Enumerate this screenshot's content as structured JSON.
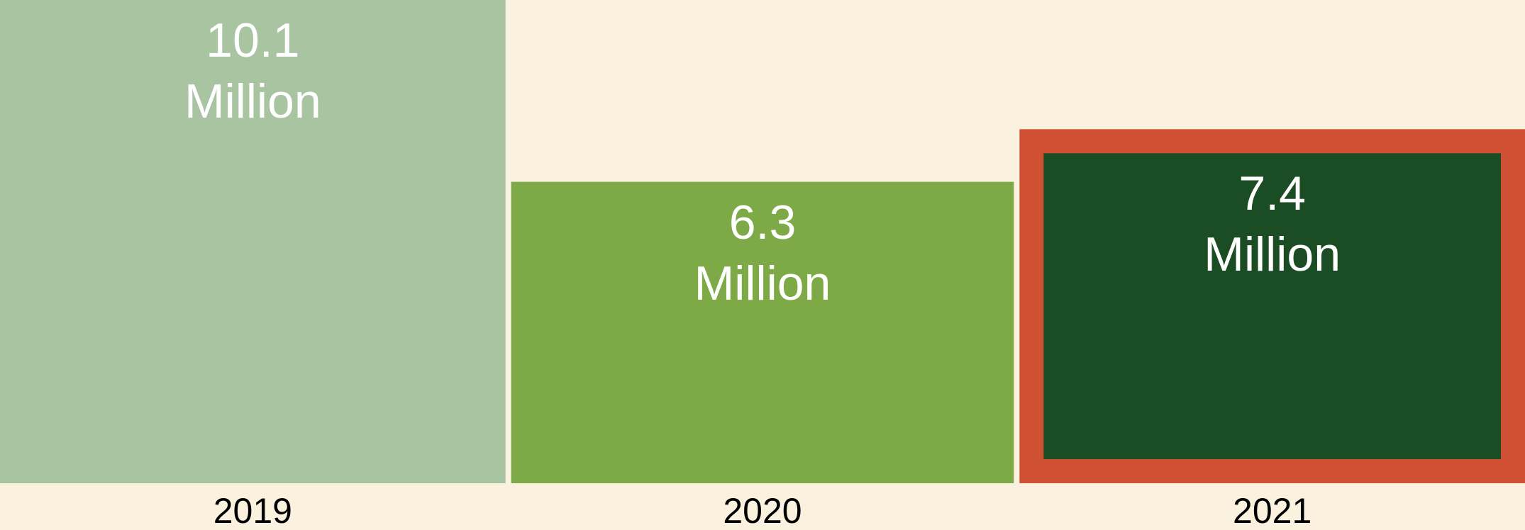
{
  "chart_data": {
    "type": "bar",
    "categories": [
      "2019",
      "2020",
      "2021"
    ],
    "values": [
      10.1,
      6.3,
      7.4
    ],
    "value_labels": [
      "10.1 Million",
      "6.3 Million",
      "7.4 Million"
    ],
    "colors": [
      "#a8c4a0",
      "#7daa47",
      "#1b4d24"
    ],
    "border_colors": [
      null,
      null,
      "#cf5032"
    ],
    "background": "#faf1de"
  }
}
